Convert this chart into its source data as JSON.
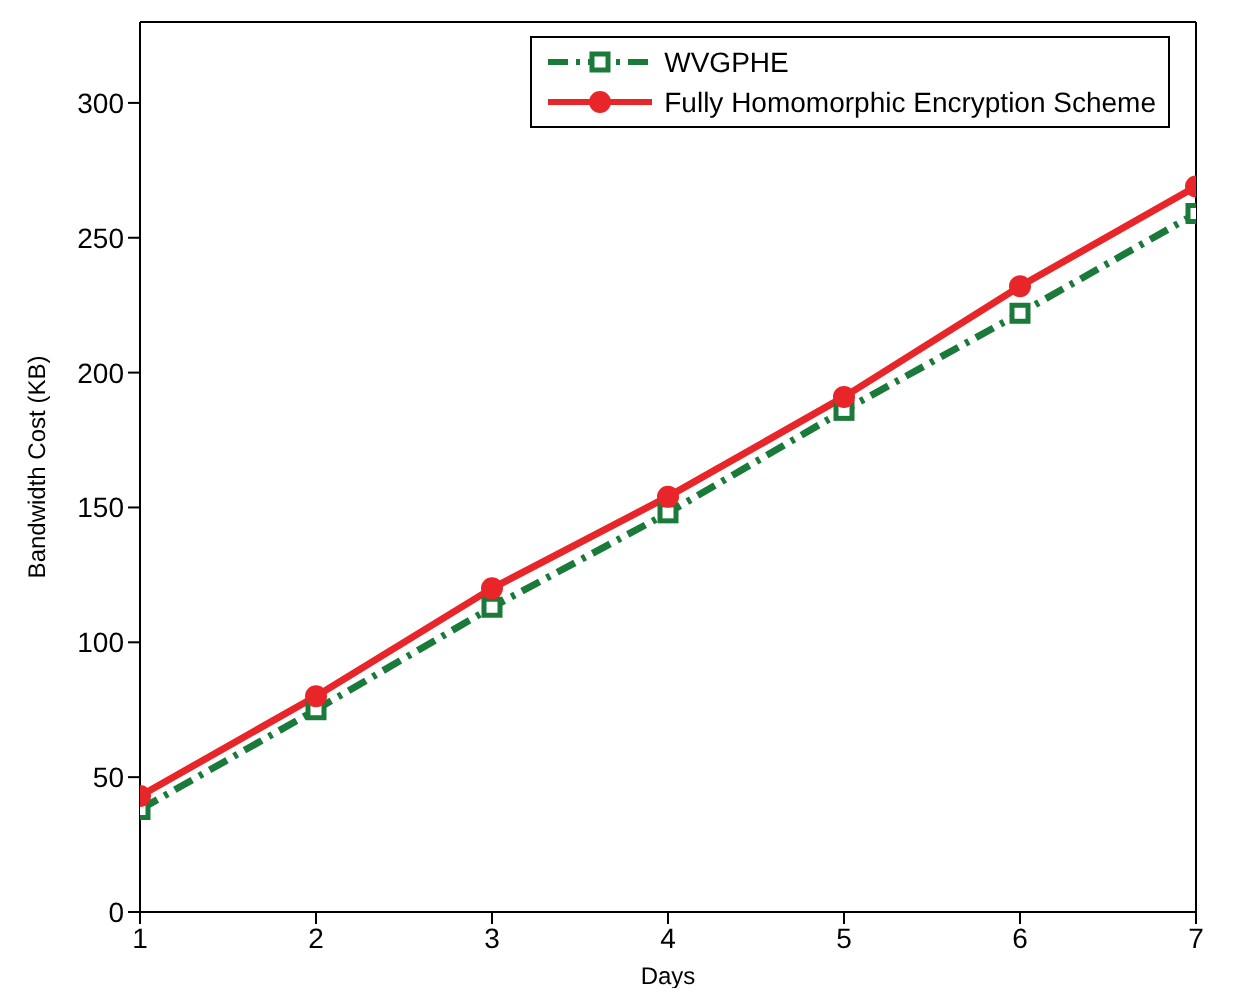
{
  "chart_data": {
    "type": "line",
    "xlabel": "Days",
    "ylabel": "Bandwidth Cost (KB)",
    "x": [
      1,
      2,
      3,
      4,
      5,
      6,
      7
    ],
    "series": [
      {
        "name": "WVGPHE",
        "color": "#1a7a3a",
        "marker": "square",
        "line_style": "dashdot",
        "values": [
          38,
          75,
          113,
          148,
          186,
          222,
          259
        ]
      },
      {
        "name": "Fully Homomorphic Encryption Scheme",
        "color": "#e8262a",
        "marker": "circle",
        "line_style": "solid",
        "values": [
          43,
          80,
          120,
          154,
          191,
          232,
          269
        ]
      }
    ],
    "xlim": [
      1,
      7
    ],
    "xticks": [
      1,
      2,
      3,
      4,
      5,
      6,
      7
    ],
    "ylim": [
      0,
      330
    ],
    "yticks": [
      0,
      50,
      100,
      150,
      200,
      250,
      300
    ],
    "grid": false,
    "legend": "top right"
  }
}
